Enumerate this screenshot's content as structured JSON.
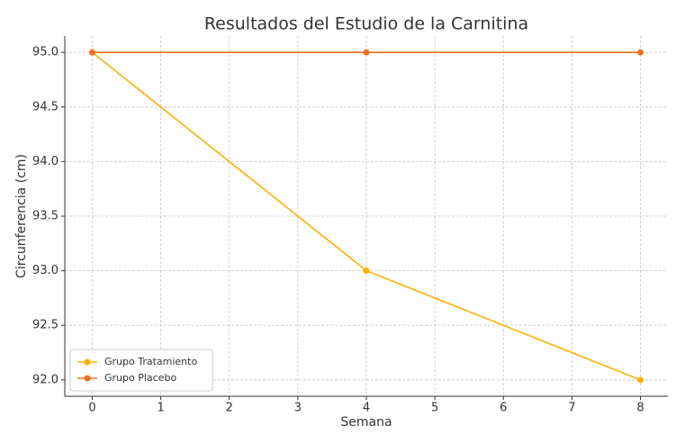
{
  "chart_data": {
    "type": "line",
    "title": "Resultados del Estudio de la Carnitina",
    "x_label": "Semana",
    "y_label": "Circunferencia (cm)",
    "x": [
      0,
      4,
      8
    ],
    "series": [
      {
        "name": "Grupo Tratamiento",
        "color": "#ffb000",
        "values": [
          95.0,
          93.0,
          92.0
        ]
      },
      {
        "name": "Grupo Placebo",
        "color": "#f07020",
        "values": [
          95.0,
          95.0,
          95.0
        ]
      }
    ],
    "xlim": [
      -0.4,
      8.4
    ],
    "ylim": [
      91.85,
      95.15
    ],
    "xticks": [
      0,
      1,
      2,
      3,
      4,
      5,
      6,
      7,
      8
    ],
    "yticks": [
      {
        "value": 92.0,
        "label": "92.0"
      },
      {
        "value": 92.5,
        "label": "92.5"
      },
      {
        "value": 93.0,
        "label": "93.0"
      },
      {
        "value": 93.5,
        "label": "93.5"
      },
      {
        "value": 94.0,
        "label": "94.0"
      },
      {
        "value": 94.5,
        "label": "94.5"
      },
      {
        "value": 95.0,
        "label": "95.0"
      }
    ],
    "grid": true,
    "legend": "lower left"
  }
}
